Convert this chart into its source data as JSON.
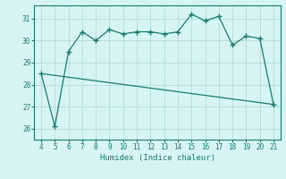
{
  "x": [
    4,
    5,
    6,
    7,
    8,
    9,
    10,
    11,
    12,
    13,
    14,
    15,
    16,
    17,
    18,
    19,
    20,
    21
  ],
  "y_main": [
    28.5,
    26.1,
    29.5,
    30.4,
    30.0,
    30.5,
    30.3,
    30.4,
    30.4,
    30.3,
    30.4,
    31.2,
    30.9,
    31.1,
    29.8,
    30.2,
    30.1,
    27.1
  ],
  "line_color": "#1a7a6e",
  "bg_color": "#d6f5f0",
  "grid_color": "#b8dfd9",
  "xlabel": "Humidex (Indice chaleur)",
  "xlim": [
    3.5,
    21.5
  ],
  "ylim": [
    25.5,
    31.6
  ],
  "yticks": [
    26,
    27,
    28,
    29,
    30,
    31
  ],
  "xticks": [
    4,
    5,
    6,
    7,
    8,
    9,
    10,
    11,
    12,
    13,
    14,
    15,
    16,
    17,
    18,
    19,
    20,
    21
  ],
  "trend_x": [
    4,
    21
  ],
  "trend_y": [
    28.5,
    27.1
  ]
}
